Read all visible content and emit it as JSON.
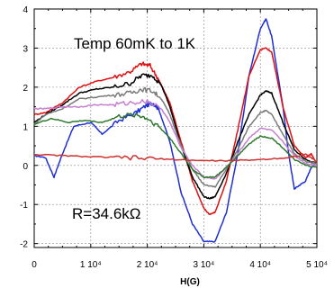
{
  "chart_data": {
    "type": "line",
    "title": "",
    "xlabel": "H(G)",
    "ylabel": "",
    "xlim": [
      0,
      50000
    ],
    "ylim": [
      -2.1,
      4
    ],
    "grid": true,
    "x_ticks": [
      0,
      10000,
      20000,
      30000,
      40000,
      50000
    ],
    "x_tick_labels": [
      "0",
      "1 10⁴",
      "2 10⁴",
      "3 10⁴",
      "4 10⁴",
      "5 10⁴"
    ],
    "y_ticks": [
      -2,
      -1,
      0,
      1,
      2,
      3,
      4
    ],
    "y_tick_labels": [
      "-2",
      "-1",
      "0",
      "1",
      "2",
      "3",
      "4"
    ],
    "annotations": [
      "Temp 60mK to 1K",
      "R=34.6kΩ"
    ],
    "series": [
      {
        "color": "#1f2fd6",
        "x": [
          0,
          2000,
          3500,
          5000,
          7000,
          10000,
          12000,
          15000,
          18000,
          20000,
          21000,
          22000,
          24000,
          26000,
          28000,
          30000,
          32000,
          34000,
          36000,
          38000,
          40000,
          41000,
          42000,
          44000,
          45000,
          46000,
          47000,
          48000,
          49000,
          50000
        ],
        "y": [
          0.25,
          0.2,
          -0.3,
          0.3,
          1.0,
          1.1,
          0.8,
          1.15,
          1.35,
          1.55,
          1.6,
          1.45,
          0.6,
          -0.7,
          -1.5,
          -1.95,
          -1.95,
          -1.2,
          0.3,
          2.3,
          3.5,
          3.75,
          3.3,
          1.5,
          0.3,
          -0.6,
          -0.5,
          -0.4,
          -0.05,
          0.1
        ]
      },
      {
        "color": "#e01010",
        "x": [
          0,
          2000,
          5000,
          8000,
          11000,
          14000,
          17000,
          19000,
          20500,
          22000,
          23000,
          24000,
          26000,
          28000,
          30000,
          31000,
          32000,
          34000,
          36000,
          38000,
          40000,
          41000,
          42000,
          44000,
          46000,
          48000,
          49000,
          50000
        ],
        "y": [
          1.3,
          1.35,
          1.6,
          2.0,
          2.15,
          2.25,
          2.4,
          2.6,
          2.55,
          2.2,
          1.9,
          1.6,
          0.6,
          -0.4,
          -1.1,
          -1.25,
          -1.2,
          -0.4,
          0.9,
          2.3,
          2.95,
          3.0,
          2.9,
          1.5,
          0.5,
          0.2,
          0.3,
          0.05
        ]
      },
      {
        "color": "#000000",
        "x": [
          0,
          2000,
          5000,
          8000,
          11000,
          14000,
          17000,
          19000,
          21000,
          22500,
          24000,
          26000,
          28000,
          30000,
          31000,
          32000,
          34000,
          36000,
          38000,
          40000,
          41000,
          42000,
          44000,
          46000,
          48000,
          50000
        ],
        "y": [
          1.1,
          1.3,
          1.55,
          1.85,
          1.95,
          2.0,
          2.1,
          2.3,
          2.3,
          2.05,
          1.5,
          0.5,
          -0.3,
          -0.8,
          -0.85,
          -0.8,
          -0.2,
          0.6,
          1.3,
          1.8,
          1.9,
          1.85,
          1.1,
          0.4,
          0.15,
          0.05
        ]
      },
      {
        "color": "#7a7a7a",
        "x": [
          0,
          2000,
          5000,
          8000,
          11000,
          14000,
          17000,
          19000,
          21000,
          22500,
          24000,
          26000,
          28000,
          30000,
          32000,
          34000,
          36000,
          38000,
          40000,
          41000,
          42000,
          44000,
          46000,
          48000,
          50000
        ],
        "y": [
          1.05,
          1.3,
          1.45,
          1.7,
          1.75,
          1.8,
          1.85,
          1.95,
          1.9,
          1.7,
          1.3,
          0.5,
          -0.1,
          -0.5,
          -0.55,
          -0.1,
          0.4,
          1.0,
          1.35,
          1.4,
          1.3,
          0.8,
          0.3,
          0.1,
          0.05
        ]
      },
      {
        "color": "#c77fd0",
        "x": [
          0,
          2000,
          5000,
          8000,
          11000,
          14000,
          17000,
          20000,
          22500,
          24000,
          26000,
          28000,
          30000,
          32000,
          34000,
          36000,
          38000,
          40000,
          42000,
          44000,
          46000,
          48000,
          50000
        ],
        "y": [
          1.45,
          1.45,
          1.5,
          1.5,
          1.55,
          1.55,
          1.6,
          1.65,
          1.45,
          1.1,
          0.45,
          0.0,
          -0.3,
          -0.35,
          -0.05,
          0.3,
          0.7,
          0.95,
          0.9,
          0.6,
          0.25,
          0.05,
          0.0
        ]
      },
      {
        "color": "#2f7a2f",
        "x": [
          0,
          3000,
          6000,
          9000,
          12000,
          15000,
          18000,
          20000,
          22000,
          24000,
          26000,
          28000,
          30000,
          32000,
          34000,
          36000,
          38000,
          40000,
          42000,
          44000,
          46000,
          48000,
          50000
        ],
        "y": [
          1.05,
          1.2,
          1.1,
          1.15,
          1.1,
          1.25,
          1.3,
          1.2,
          1.0,
          0.7,
          0.3,
          -0.1,
          -0.3,
          -0.3,
          -0.05,
          0.25,
          0.55,
          0.75,
          0.7,
          0.45,
          0.15,
          0.0,
          -0.05
        ]
      },
      {
        "color": "#cf3030",
        "x": [
          0,
          5000,
          10000,
          15000,
          20000,
          25000,
          30000,
          35000,
          40000,
          45000,
          48000,
          50000
        ],
        "y": [
          0.28,
          0.25,
          0.22,
          0.2,
          0.18,
          0.15,
          0.12,
          0.12,
          0.15,
          0.2,
          0.28,
          0.1
        ]
      }
    ]
  }
}
